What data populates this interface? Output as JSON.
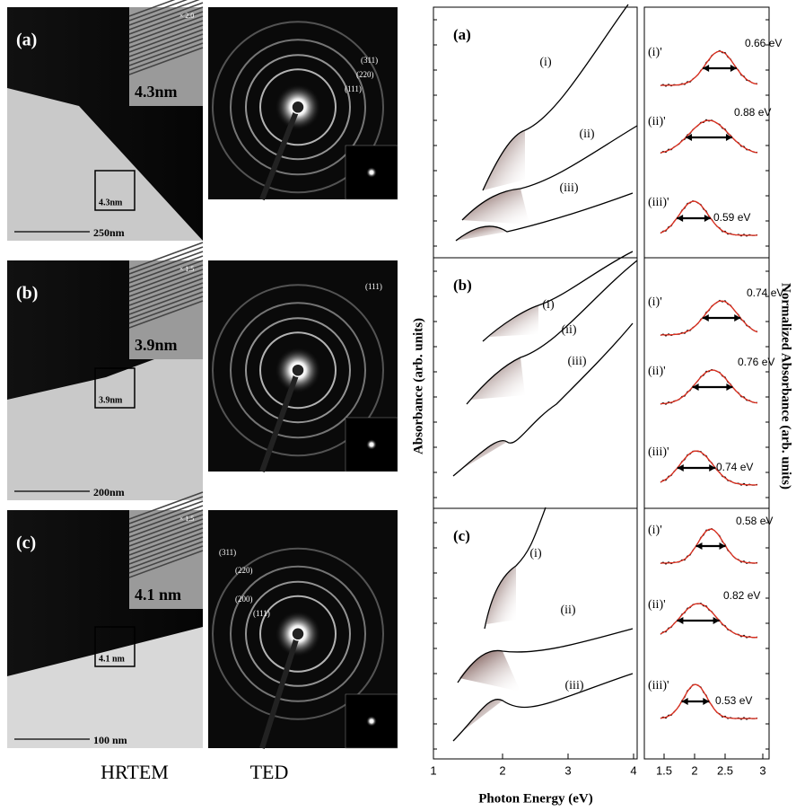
{
  "hrtem": [
    {
      "label": "(a)",
      "magnification": "× 2.0",
      "inset_size": "4.3nm",
      "box_size": "4.3nm",
      "scale_bar": "250nm"
    },
    {
      "label": "(b)",
      "magnification": "× 1.5",
      "inset_size": "3.9nm",
      "box_size": "3.9nm",
      "scale_bar": "200nm"
    },
    {
      "label": "(c)",
      "magnification": "× 1.5",
      "inset_size": "4.1 nm",
      "box_size": "4.1 nm",
      "scale_bar": "100 nm"
    }
  ],
  "ted": [
    {
      "rings": [
        "(311)",
        "(220)",
        "(111)"
      ]
    },
    {
      "rings": [
        "(111)"
      ]
    },
    {
      "rings": [
        "(311)",
        "(220)",
        "(200)",
        "(111)"
      ]
    }
  ],
  "captions": {
    "hrtem": "HRTEM",
    "ted": "TED"
  },
  "absorbance": {
    "y_axis_label": "Absorbance (arb. units)",
    "x_axis_label": "Photon Energy (eV)",
    "xticks": [
      "1",
      "2",
      "3",
      "4"
    ],
    "panels": [
      {
        "label": "(a)",
        "curves": [
          "(i)",
          "(ii)",
          "(iii)"
        ]
      },
      {
        "label": "(b)",
        "curves": [
          "(i)",
          "(ii)",
          "(iii)"
        ]
      },
      {
        "label": "(c)",
        "curves": [
          "(i)",
          "(ii)",
          "(iii)"
        ]
      }
    ]
  },
  "normalized": {
    "y_axis_label": "Normalized Absorbance (arb. units)",
    "xticks": [
      "1.5",
      "2",
      "2.5",
      "3"
    ],
    "panels": [
      {
        "peaks": [
          {
            "label": "(i)'",
            "fwhm": "0.66 eV"
          },
          {
            "label": "(ii)'",
            "fwhm": "0.88 eV"
          },
          {
            "label": "(iii)'",
            "fwhm": "0.59 eV"
          }
        ]
      },
      {
        "peaks": [
          {
            "label": "(i)'",
            "fwhm": "0.74 eV"
          },
          {
            "label": "(ii)'",
            "fwhm": "0.76 eV"
          },
          {
            "label": "(iii)'",
            "fwhm": "0.74 eV"
          }
        ]
      },
      {
        "peaks": [
          {
            "label": "(i)'",
            "fwhm": "0.58 eV"
          },
          {
            "label": "(ii)'",
            "fwhm": "0.82 eV"
          },
          {
            "label": "(iii)'",
            "fwhm": "0.53 eV"
          }
        ]
      }
    ]
  }
}
